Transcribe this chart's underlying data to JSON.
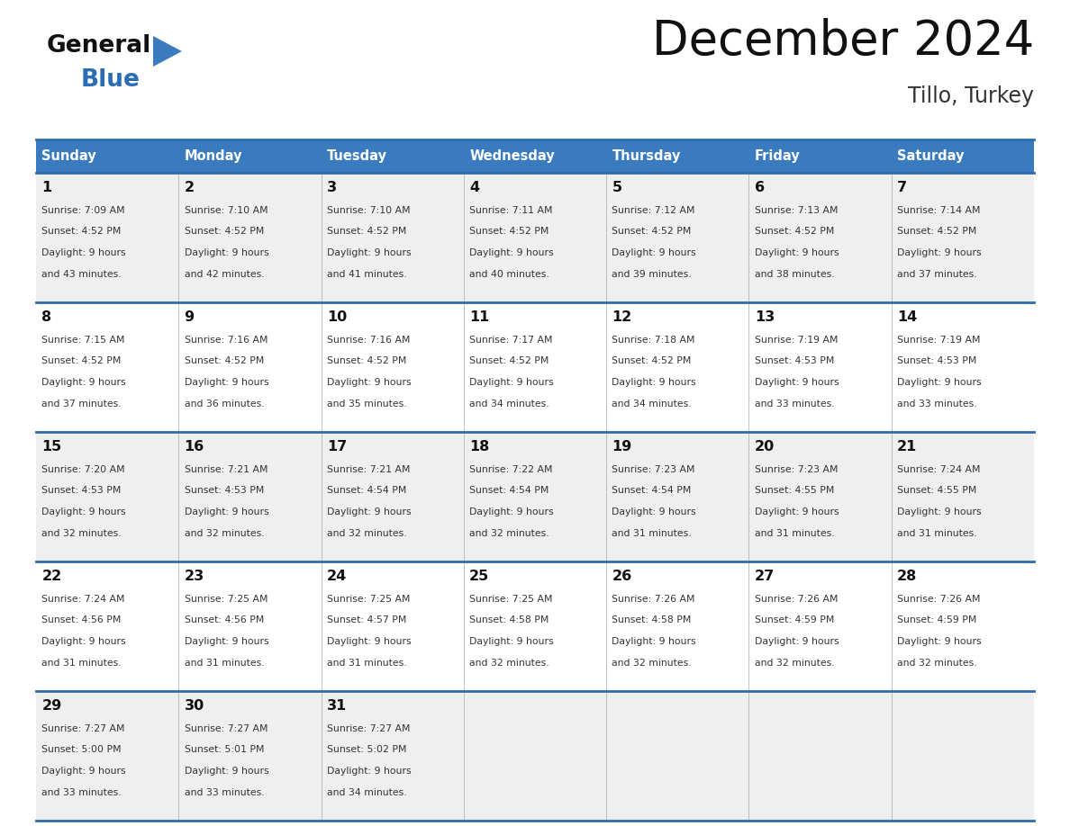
{
  "title": "December 2024",
  "subtitle": "Tillo, Turkey",
  "header_bg_color": "#3a7bbf",
  "header_text_color": "#ffffff",
  "cell_bg_odd": "#efefef",
  "cell_bg_even": "#ffffff",
  "border_color": "#2f6cac",
  "text_color": "#222222",
  "day_headers": [
    "Sunday",
    "Monday",
    "Tuesday",
    "Wednesday",
    "Thursday",
    "Friday",
    "Saturday"
  ],
  "days": [
    {
      "day": 1,
      "col": 0,
      "row": 0,
      "sunrise": "7:09 AM",
      "sunset": "4:52 PM",
      "daylight_h": "9 hours",
      "daylight_m": "43 minutes."
    },
    {
      "day": 2,
      "col": 1,
      "row": 0,
      "sunrise": "7:10 AM",
      "sunset": "4:52 PM",
      "daylight_h": "9 hours",
      "daylight_m": "42 minutes."
    },
    {
      "day": 3,
      "col": 2,
      "row": 0,
      "sunrise": "7:10 AM",
      "sunset": "4:52 PM",
      "daylight_h": "9 hours",
      "daylight_m": "41 minutes."
    },
    {
      "day": 4,
      "col": 3,
      "row": 0,
      "sunrise": "7:11 AM",
      "sunset": "4:52 PM",
      "daylight_h": "9 hours",
      "daylight_m": "40 minutes."
    },
    {
      "day": 5,
      "col": 4,
      "row": 0,
      "sunrise": "7:12 AM",
      "sunset": "4:52 PM",
      "daylight_h": "9 hours",
      "daylight_m": "39 minutes."
    },
    {
      "day": 6,
      "col": 5,
      "row": 0,
      "sunrise": "7:13 AM",
      "sunset": "4:52 PM",
      "daylight_h": "9 hours",
      "daylight_m": "38 minutes."
    },
    {
      "day": 7,
      "col": 6,
      "row": 0,
      "sunrise": "7:14 AM",
      "sunset": "4:52 PM",
      "daylight_h": "9 hours",
      "daylight_m": "37 minutes."
    },
    {
      "day": 8,
      "col": 0,
      "row": 1,
      "sunrise": "7:15 AM",
      "sunset": "4:52 PM",
      "daylight_h": "9 hours",
      "daylight_m": "37 minutes."
    },
    {
      "day": 9,
      "col": 1,
      "row": 1,
      "sunrise": "7:16 AM",
      "sunset": "4:52 PM",
      "daylight_h": "9 hours",
      "daylight_m": "36 minutes."
    },
    {
      "day": 10,
      "col": 2,
      "row": 1,
      "sunrise": "7:16 AM",
      "sunset": "4:52 PM",
      "daylight_h": "9 hours",
      "daylight_m": "35 minutes."
    },
    {
      "day": 11,
      "col": 3,
      "row": 1,
      "sunrise": "7:17 AM",
      "sunset": "4:52 PM",
      "daylight_h": "9 hours",
      "daylight_m": "34 minutes."
    },
    {
      "day": 12,
      "col": 4,
      "row": 1,
      "sunrise": "7:18 AM",
      "sunset": "4:52 PM",
      "daylight_h": "9 hours",
      "daylight_m": "34 minutes."
    },
    {
      "day": 13,
      "col": 5,
      "row": 1,
      "sunrise": "7:19 AM",
      "sunset": "4:53 PM",
      "daylight_h": "9 hours",
      "daylight_m": "33 minutes."
    },
    {
      "day": 14,
      "col": 6,
      "row": 1,
      "sunrise": "7:19 AM",
      "sunset": "4:53 PM",
      "daylight_h": "9 hours",
      "daylight_m": "33 minutes."
    },
    {
      "day": 15,
      "col": 0,
      "row": 2,
      "sunrise": "7:20 AM",
      "sunset": "4:53 PM",
      "daylight_h": "9 hours",
      "daylight_m": "32 minutes."
    },
    {
      "day": 16,
      "col": 1,
      "row": 2,
      "sunrise": "7:21 AM",
      "sunset": "4:53 PM",
      "daylight_h": "9 hours",
      "daylight_m": "32 minutes."
    },
    {
      "day": 17,
      "col": 2,
      "row": 2,
      "sunrise": "7:21 AM",
      "sunset": "4:54 PM",
      "daylight_h": "9 hours",
      "daylight_m": "32 minutes."
    },
    {
      "day": 18,
      "col": 3,
      "row": 2,
      "sunrise": "7:22 AM",
      "sunset": "4:54 PM",
      "daylight_h": "9 hours",
      "daylight_m": "32 minutes."
    },
    {
      "day": 19,
      "col": 4,
      "row": 2,
      "sunrise": "7:23 AM",
      "sunset": "4:54 PM",
      "daylight_h": "9 hours",
      "daylight_m": "31 minutes."
    },
    {
      "day": 20,
      "col": 5,
      "row": 2,
      "sunrise": "7:23 AM",
      "sunset": "4:55 PM",
      "daylight_h": "9 hours",
      "daylight_m": "31 minutes."
    },
    {
      "day": 21,
      "col": 6,
      "row": 2,
      "sunrise": "7:24 AM",
      "sunset": "4:55 PM",
      "daylight_h": "9 hours",
      "daylight_m": "31 minutes."
    },
    {
      "day": 22,
      "col": 0,
      "row": 3,
      "sunrise": "7:24 AM",
      "sunset": "4:56 PM",
      "daylight_h": "9 hours",
      "daylight_m": "31 minutes."
    },
    {
      "day": 23,
      "col": 1,
      "row": 3,
      "sunrise": "7:25 AM",
      "sunset": "4:56 PM",
      "daylight_h": "9 hours",
      "daylight_m": "31 minutes."
    },
    {
      "day": 24,
      "col": 2,
      "row": 3,
      "sunrise": "7:25 AM",
      "sunset": "4:57 PM",
      "daylight_h": "9 hours",
      "daylight_m": "31 minutes."
    },
    {
      "day": 25,
      "col": 3,
      "row": 3,
      "sunrise": "7:25 AM",
      "sunset": "4:58 PM",
      "daylight_h": "9 hours",
      "daylight_m": "32 minutes."
    },
    {
      "day": 26,
      "col": 4,
      "row": 3,
      "sunrise": "7:26 AM",
      "sunset": "4:58 PM",
      "daylight_h": "9 hours",
      "daylight_m": "32 minutes."
    },
    {
      "day": 27,
      "col": 5,
      "row": 3,
      "sunrise": "7:26 AM",
      "sunset": "4:59 PM",
      "daylight_h": "9 hours",
      "daylight_m": "32 minutes."
    },
    {
      "day": 28,
      "col": 6,
      "row": 3,
      "sunrise": "7:26 AM",
      "sunset": "4:59 PM",
      "daylight_h": "9 hours",
      "daylight_m": "32 minutes."
    },
    {
      "day": 29,
      "col": 0,
      "row": 4,
      "sunrise": "7:27 AM",
      "sunset": "5:00 PM",
      "daylight_h": "9 hours",
      "daylight_m": "33 minutes."
    },
    {
      "day": 30,
      "col": 1,
      "row": 4,
      "sunrise": "7:27 AM",
      "sunset": "5:01 PM",
      "daylight_h": "9 hours",
      "daylight_m": "33 minutes."
    },
    {
      "day": 31,
      "col": 2,
      "row": 4,
      "sunrise": "7:27 AM",
      "sunset": "5:02 PM",
      "daylight_h": "9 hours",
      "daylight_m": "34 minutes."
    }
  ],
  "num_rows": 5,
  "logo_triangle_color": "#3a7bbf",
  "logo_blue_color": "#2a6db5"
}
